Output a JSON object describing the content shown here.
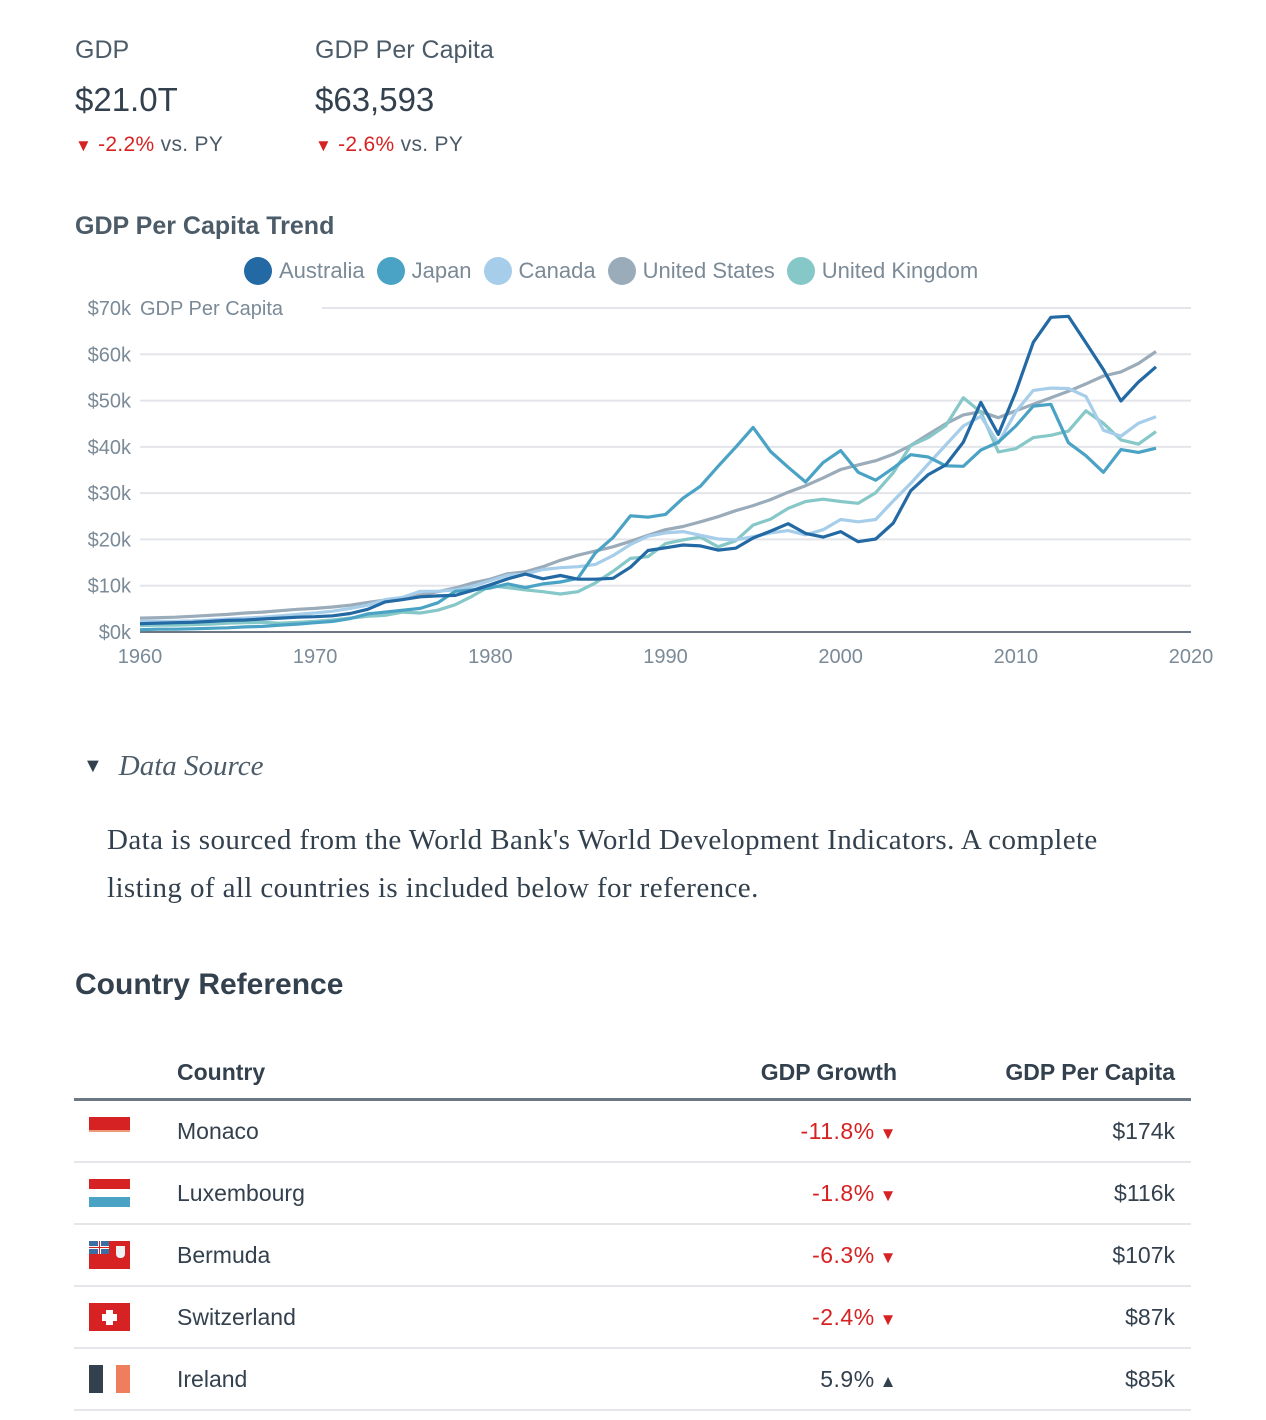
{
  "kpis": [
    {
      "label": "GDP",
      "value": "$21.0T",
      "delta": "-2.2%",
      "delta_direction": "down",
      "suffix": "vs. PY"
    },
    {
      "label": "GDP Per Capita",
      "value": "$63,593",
      "delta": "-2.6%",
      "delta_direction": "down",
      "suffix": "vs. PY"
    }
  ],
  "colors": {
    "negative": "#d62222",
    "text": "#33414e",
    "muted": "#7b8a97"
  },
  "chart_data": {
    "type": "line",
    "title": "GDP Per Capita Trend",
    "xlabel": "",
    "ylabel": "GDP Per Capita",
    "xlim": [
      1960,
      2020
    ],
    "ylim": [
      0,
      70
    ],
    "x_ticks": [
      "1960",
      "1970",
      "1980",
      "1990",
      "2000",
      "2010",
      "2020"
    ],
    "y_ticks": [
      "$0k",
      "$10k",
      "$20k",
      "$30k",
      "$40k",
      "$50k",
      "$60k",
      "$70k"
    ],
    "y_unit": "thousands USD",
    "grid": true,
    "legend_position": "top-center",
    "x": [
      1960,
      1961,
      1962,
      1963,
      1964,
      1965,
      1966,
      1967,
      1968,
      1969,
      1970,
      1971,
      1972,
      1973,
      1974,
      1975,
      1976,
      1977,
      1978,
      1979,
      1980,
      1981,
      1982,
      1983,
      1984,
      1985,
      1986,
      1987,
      1988,
      1989,
      1990,
      1991,
      1992,
      1993,
      1994,
      1995,
      1996,
      1997,
      1998,
      1999,
      2000,
      2001,
      2002,
      2003,
      2004,
      2005,
      2006,
      2007,
      2008,
      2009,
      2010,
      2011,
      2012,
      2013,
      2014,
      2015,
      2016,
      2017,
      2018
    ],
    "series": [
      {
        "name": "Australia",
        "color": "#2369a4",
        "values": [
          1.8,
          1.9,
          2.0,
          2.1,
          2.3,
          2.5,
          2.6,
          2.8,
          3.0,
          3.2,
          3.3,
          3.5,
          4.0,
          4.9,
          6.5,
          7.0,
          7.6,
          7.8,
          7.9,
          9.0,
          10.2,
          11.5,
          12.5,
          11.5,
          12.2,
          11.4,
          11.4,
          11.6,
          14.0,
          17.6,
          18.2,
          18.8,
          18.6,
          17.7,
          18.1,
          20.3,
          21.8,
          23.4,
          21.3,
          20.5,
          21.7,
          19.5,
          20.1,
          23.5,
          30.5,
          34.0,
          36.1,
          41.0,
          49.6,
          42.7,
          51.9,
          62.6,
          68.0,
          68.2,
          62.5,
          56.7,
          49.9,
          54.0,
          57.3
        ]
      },
      {
        "name": "Japan",
        "color": "#4aa3c4",
        "values": [
          0.5,
          0.6,
          0.6,
          0.7,
          0.8,
          0.9,
          1.1,
          1.2,
          1.5,
          1.7,
          2.0,
          2.3,
          2.9,
          3.9,
          4.3,
          4.7,
          5.1,
          6.3,
          8.8,
          9.1,
          9.5,
          10.4,
          9.6,
          10.4,
          10.8,
          11.6,
          17.1,
          20.4,
          25.1,
          24.8,
          25.4,
          28.9,
          31.5,
          35.8,
          39.9,
          44.2,
          39.0,
          35.6,
          32.4,
          36.6,
          39.2,
          34.5,
          32.8,
          35.4,
          38.3,
          37.8,
          35.9,
          35.8,
          39.3,
          41.0,
          44.5,
          48.8,
          49.2,
          40.9,
          38.1,
          34.5,
          39.4,
          38.8,
          39.7
        ]
      },
      {
        "name": "Canada",
        "color": "#a6cde9",
        "values": [
          2.3,
          2.3,
          2.3,
          2.4,
          2.6,
          2.8,
          3.0,
          3.2,
          3.5,
          3.8,
          4.1,
          4.5,
          5.1,
          5.8,
          7.0,
          7.5,
          8.8,
          8.8,
          9.1,
          9.9,
          11.1,
          12.3,
          12.5,
          13.5,
          13.9,
          14.1,
          14.6,
          16.5,
          18.9,
          20.7,
          21.4,
          21.7,
          20.9,
          20.1,
          19.9,
          20.6,
          21.4,
          21.9,
          21.0,
          22.1,
          24.3,
          23.8,
          24.3,
          28.3,
          32.1,
          36.3,
          40.4,
          44.5,
          46.6,
          40.8,
          47.6,
          52.2,
          52.7,
          52.6,
          50.9,
          43.6,
          42.3,
          45.1,
          46.5
        ]
      },
      {
        "name": "United States",
        "color": "#9aabb9",
        "values": [
          3.0,
          3.1,
          3.2,
          3.4,
          3.6,
          3.8,
          4.1,
          4.3,
          4.6,
          4.9,
          5.1,
          5.4,
          5.8,
          6.4,
          6.9,
          7.3,
          8.0,
          8.7,
          9.5,
          10.6,
          11.4,
          12.6,
          13.0,
          14.1,
          15.5,
          16.6,
          17.5,
          18.4,
          19.6,
          20.9,
          22.1,
          22.8,
          23.8,
          24.9,
          26.2,
          27.3,
          28.6,
          30.2,
          31.6,
          33.3,
          35.1,
          36.1,
          37.0,
          38.4,
          40.3,
          42.7,
          45.0,
          46.9,
          47.6,
          46.3,
          47.8,
          49.2,
          50.6,
          52.0,
          53.6,
          55.3,
          56.2,
          58.0,
          60.6
        ]
      },
      {
        "name": "United Kingdom",
        "color": "#86c7c8",
        "values": [
          1.4,
          1.5,
          1.5,
          1.6,
          1.7,
          1.9,
          2.0,
          2.1,
          1.9,
          2.1,
          2.3,
          2.6,
          3.0,
          3.4,
          3.6,
          4.3,
          4.1,
          4.7,
          5.9,
          7.8,
          10.0,
          9.6,
          9.1,
          8.7,
          8.2,
          8.7,
          10.6,
          13.1,
          15.9,
          16.3,
          19.1,
          19.9,
          20.5,
          18.4,
          19.7,
          23.1,
          24.4,
          26.7,
          28.2,
          28.7,
          28.2,
          27.8,
          30.1,
          34.4,
          40.3,
          42.0,
          44.6,
          50.6,
          47.5,
          38.9,
          39.6,
          42.0,
          42.5,
          43.4,
          47.8,
          45.1,
          41.5,
          40.6,
          43.3
        ]
      }
    ]
  },
  "data_source": {
    "summary": "Data Source",
    "text": "Data is sourced from the World Bank's World Development Indicators. A complete listing of all countries is included below for reference."
  },
  "country_reference": {
    "title": "Country Reference",
    "columns": [
      "Country",
      "GDP Growth",
      "GDP Per Capita"
    ],
    "rows": [
      {
        "flag": "monaco-flag",
        "country": "Monaco",
        "growth": "-11.8%",
        "direction": "down",
        "gdp_per_capita": "$174k"
      },
      {
        "flag": "luxembourg-flag",
        "country": "Luxembourg",
        "growth": "-1.8%",
        "direction": "down",
        "gdp_per_capita": "$116k"
      },
      {
        "flag": "bermuda-flag",
        "country": "Bermuda",
        "growth": "-6.3%",
        "direction": "down",
        "gdp_per_capita": "$107k"
      },
      {
        "flag": "switzerland-flag",
        "country": "Switzerland",
        "growth": "-2.4%",
        "direction": "down",
        "gdp_per_capita": "$87k"
      },
      {
        "flag": "ireland-flag",
        "country": "Ireland",
        "growth": "5.9%",
        "direction": "up",
        "gdp_per_capita": "$85k"
      }
    ]
  }
}
